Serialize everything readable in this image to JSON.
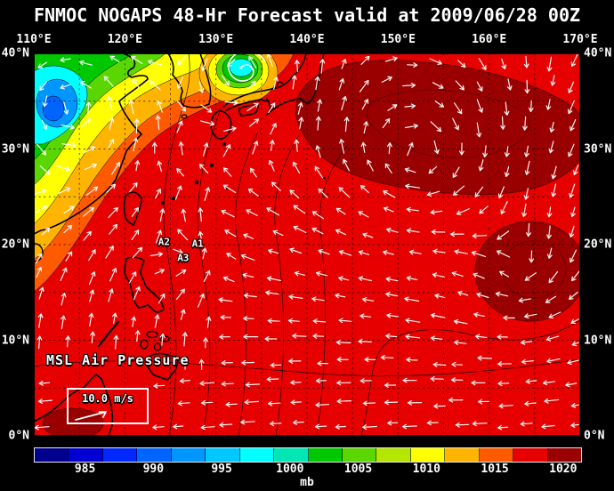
{
  "title": "FNMOC NOGAPS 48-Hr Forecast valid at 2009/06/28 00Z",
  "map": {
    "lon_range": [
      110,
      170
    ],
    "lat_range": [
      0,
      40
    ],
    "grid_interval_deg": 5,
    "lon_ticks": [
      {
        "deg": 110,
        "label": "110°E"
      },
      {
        "deg": 120,
        "label": "120°E"
      },
      {
        "deg": 130,
        "label": "130°E"
      },
      {
        "deg": 140,
        "label": "140°E"
      },
      {
        "deg": 150,
        "label": "150°E"
      },
      {
        "deg": 160,
        "label": "160°E"
      },
      {
        "deg": 170,
        "label": "170°E"
      }
    ],
    "lat_ticks": [
      {
        "deg": 40,
        "label": "40°N"
      },
      {
        "deg": 30,
        "label": "30°N"
      },
      {
        "deg": 20,
        "label": "20°N"
      },
      {
        "deg": 10,
        "label": "10°N"
      },
      {
        "deg": 0,
        "label": "0°N"
      }
    ],
    "field_label": "MSL Air Pressure",
    "wind_legend": {
      "speed_label": "10.0 m/s"
    },
    "storms": [
      {
        "id": "A1",
        "lon": 128.0,
        "lat": 20.1
      },
      {
        "id": "A2",
        "lon": 124.3,
        "lat": 20.3
      },
      {
        "id": "A3",
        "lon": 126.4,
        "lat": 18.6
      }
    ]
  },
  "colorbar": {
    "units_label": "mb",
    "min": 981.25,
    "max": 1021.25,
    "ticks": [
      985,
      990,
      995,
      1000,
      1005,
      1010,
      1015,
      1020
    ],
    "colors": [
      "#000090",
      "#0000d2",
      "#0028ff",
      "#0064ff",
      "#0096ff",
      "#00c8ff",
      "#00ffff",
      "#00e6b4",
      "#00c800",
      "#5ad700",
      "#b4e600",
      "#ffff00",
      "#ffb400",
      "#ff5a00",
      "#e60000",
      "#9b0000"
    ]
  },
  "chart_data": {
    "type": "heatmap",
    "title": "FNMOC NOGAPS 48-Hr Forecast valid at 2009/06/28 00Z",
    "field": "MSL Air Pressure",
    "units": "mb",
    "x_axis": {
      "label": "longitude",
      "range_deg_e": [
        110,
        170
      ],
      "tick_interval_deg": 10,
      "grid_interval_deg": 5
    },
    "y_axis": {
      "label": "latitude",
      "range_deg_n": [
        0,
        40
      ],
      "tick_interval_deg": 10,
      "grid_interval_deg": 5
    },
    "colorbar": {
      "min_mb": 981.25,
      "max_mb": 1021.25,
      "tick_mb": [
        985,
        990,
        995,
        1000,
        1005,
        1010,
        1015,
        1020
      ]
    },
    "features": [
      {
        "name": "broad low over eastern China",
        "approx_center_lon_e": 112.5,
        "approx_center_lat_n": 34.5,
        "approx_pressure_mb": 989
      },
      {
        "name": "cyclonic vortex over Sea of Japan",
        "approx_center_lon_e": 132.5,
        "approx_center_lat_n": 38.5,
        "approx_pressure_mb": 997
      },
      {
        "name": "subtropical high over NW Pacific",
        "approx_center_lon_e": 152,
        "approx_center_lat_n": 30,
        "approx_pressure_mb": 1018
      },
      {
        "name": "high east of Philippines",
        "approx_center_lon_e": 164,
        "approx_center_lat_n": 17,
        "approx_pressure_mb": 1017
      },
      {
        "name": "tropical disturbance A1",
        "lon_e": 128.0,
        "lat_n": 20.1
      },
      {
        "name": "tropical disturbance A2",
        "lon_e": 124.3,
        "lat_n": 20.3
      },
      {
        "name": "tropical disturbance A3",
        "lon_e": 126.4,
        "lat_n": 18.6
      }
    ],
    "wind_vectors": {
      "legend_speed_m_s": 10.0,
      "style": "white arrows"
    }
  }
}
